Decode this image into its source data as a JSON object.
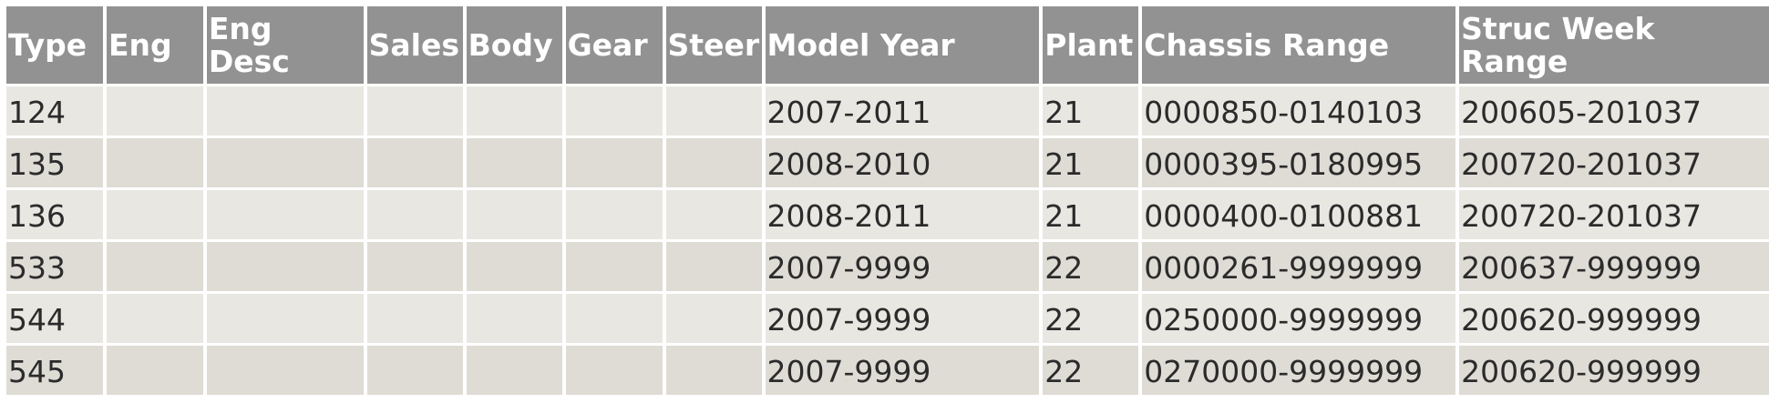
{
  "table": {
    "headers": [
      "Type",
      "Eng",
      "Eng Desc",
      "Sales",
      "Body",
      "Gear",
      "Steer",
      "Model Year",
      "Plant",
      "Chassis Range",
      "Struc Week Range"
    ],
    "rows": [
      [
        "124",
        "",
        "",
        "",
        "",
        "",
        "",
        "2007-2011",
        "21",
        "0000850-0140103",
        "200605-201037"
      ],
      [
        "135",
        "",
        "",
        "",
        "",
        "",
        "",
        "2008-2010",
        "21",
        "0000395-0180995",
        "200720-201037"
      ],
      [
        "136",
        "",
        "",
        "",
        "",
        "",
        "",
        "2008-2011",
        "21",
        "0000400-0100881",
        "200720-201037"
      ],
      [
        "533",
        "",
        "",
        "",
        "",
        "",
        "",
        "2007-9999",
        "22",
        "0000261-9999999",
        "200637-999999"
      ],
      [
        "544",
        "",
        "",
        "",
        "",
        "",
        "",
        "2007-9999",
        "22",
        "0250000-9999999",
        "200620-999999"
      ],
      [
        "545",
        "",
        "",
        "",
        "",
        "",
        "",
        "2007-9999",
        "22",
        "0270000-9999999",
        "200620-999999"
      ]
    ]
  },
  "colors": {
    "header_bg": "#929292",
    "header_text": "#ffffff",
    "row_odd_bg": "#e9e7e2",
    "row_even_bg": "#dedcd5",
    "cell_text": "#2b2b2b"
  }
}
